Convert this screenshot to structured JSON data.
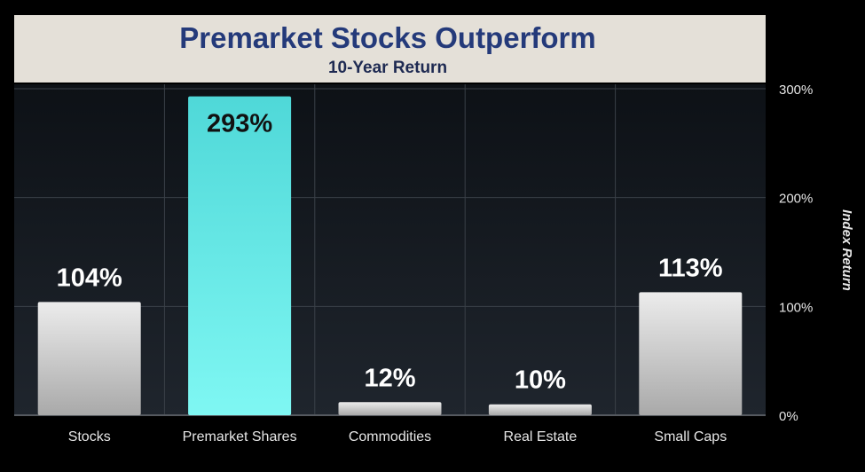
{
  "chart_data": {
    "type": "bar",
    "title": "Premarket Stocks Outperform",
    "subtitle": "10-Year Return",
    "xlabel": "",
    "ylabel": "Index Return",
    "categories": [
      "Stocks",
      "Premarket Shares",
      "Commodities",
      "Real Estate",
      "Small Caps"
    ],
    "values": [
      104,
      293,
      12,
      10,
      113
    ],
    "data_labels": [
      "104%",
      "293%",
      "12%",
      "10%",
      "113%"
    ],
    "highlight_index": 1,
    "ylim": [
      0,
      300
    ],
    "yticks": [
      0,
      100,
      200,
      300
    ],
    "ytick_labels": [
      "0%",
      "100%",
      "200%",
      "300%"
    ],
    "grid": true,
    "colors": {
      "background": "#000000",
      "plot_background": "#141920",
      "grid": "#3a4048",
      "title_panel": "#e4e0d8",
      "title_text": "#243a7a",
      "subtitle_text": "#1e2a52",
      "bar_default": "#d8d8d8",
      "bar_highlight": "#5eece8",
      "label_text": "#ffffff",
      "highlight_label_text": "#111111",
      "axis_text": "#e6e6e6"
    }
  }
}
